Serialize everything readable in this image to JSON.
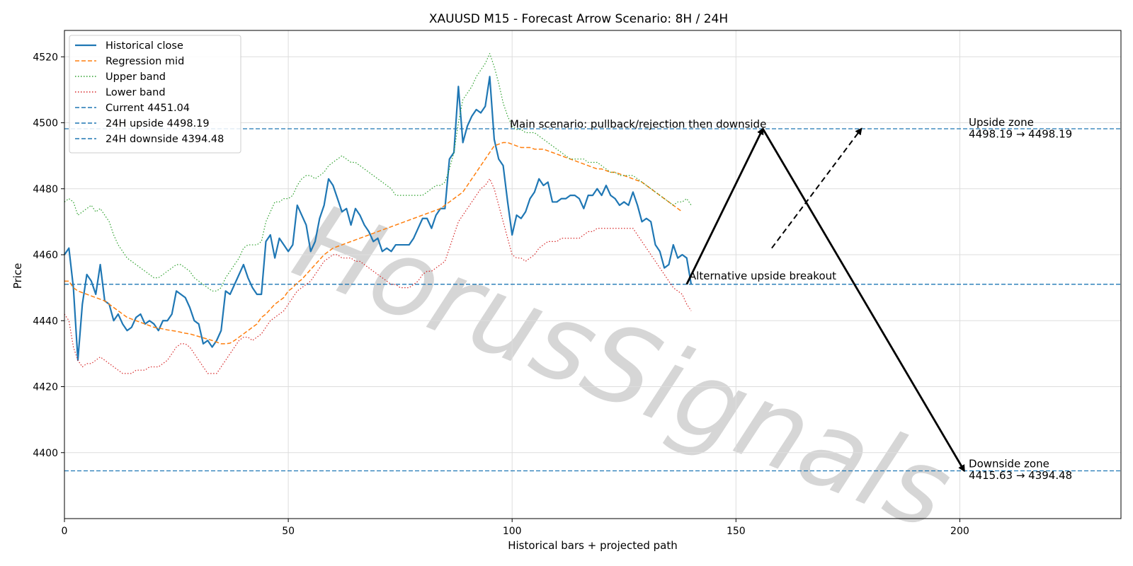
{
  "chart_data": {
    "type": "line",
    "title": "XAUUSD M15 - Forecast Arrow Scenario: 8H / 24H",
    "xlabel": "Historical bars + projected path",
    "ylabel": "Price",
    "xlim": [
      0,
      236
    ],
    "ylim": [
      4380,
      4528
    ],
    "xticks": [
      0,
      50,
      100,
      150,
      200
    ],
    "yticks": [
      4400,
      4420,
      4440,
      4460,
      4480,
      4500,
      4520
    ],
    "grid": true,
    "legend_position": "top-left",
    "colors": {
      "close": "#1f77b4",
      "mid": "#ff7f0e",
      "upper": "#2ca02c",
      "lower": "#d62728",
      "level": "#1f77b4",
      "arrow": "#000000"
    },
    "series": [
      {
        "name": "Historical close",
        "style": "solid",
        "values": [
          4460,
          4462,
          4450,
          4428,
          4445,
          4454,
          4452,
          4448,
          4457,
          4446,
          4445,
          4440,
          4442,
          4439,
          4437,
          4438,
          4441,
          4442,
          4439,
          4440,
          4439,
          4437,
          4440,
          4440,
          4442,
          4449,
          4448,
          4447,
          4444,
          4440,
          4439,
          4433,
          4434,
          4432,
          4434,
          4437,
          4449,
          4448,
          4451,
          4454,
          4457,
          4453,
          4450,
          4448,
          4448,
          4464,
          4466,
          4459,
          4465,
          4463,
          4461,
          4463,
          4475,
          4472,
          4469,
          4461,
          4464,
          4471,
          4475,
          4483,
          4481,
          4477,
          4473,
          4474,
          4469,
          4474,
          4472,
          4469,
          4467,
          4464,
          4465,
          4461,
          4462,
          4461,
          4463,
          4463,
          4463,
          4463,
          4465,
          4468,
          4471,
          4471,
          4468,
          4472,
          4474,
          4474,
          4489,
          4491,
          4511,
          4494,
          4499,
          4502,
          4504,
          4503,
          4505,
          4514,
          4495,
          4489,
          4487,
          4476,
          4466,
          4472,
          4471,
          4473,
          4477,
          4479,
          4483,
          4481,
          4482,
          4476,
          4476,
          4477,
          4477,
          4478,
          4478,
          4477,
          4474,
          4478,
          4478,
          4480,
          4478,
          4481,
          4478,
          4477,
          4475,
          4476,
          4475,
          4479,
          4475,
          4470,
          4471,
          4470,
          4463,
          4461,
          4456,
          4457,
          4463,
          4459,
          4460,
          4459,
          4451
        ]
      },
      {
        "name": "Regression mid",
        "style": "dashed",
        "values": [
          4452,
          4452,
          4450,
          4449,
          4448.5,
          4448,
          4447.5,
          4447,
          4446.5,
          4446,
          4445,
          4444,
          4443,
          4442,
          4441,
          4440.5,
          4440,
          4439.5,
          4439,
          4438.5,
          4438,
          4437.8,
          4437.5,
          4437.2,
          4437,
          4436.8,
          4436.5,
          4436.2,
          4436,
          4435.6,
          4435.2,
          4434.8,
          4434.4,
          4434,
          4433.5,
          4433,
          4433,
          4433.2,
          4434,
          4435,
          4436,
          4437,
          4438,
          4439,
          4441,
          4442,
          4443.5,
          4445,
          4446,
          4447,
          4449,
          4450,
          4451.5,
          4452.5,
          4454,
          4455.5,
          4457,
          4458.5,
          4460,
          4461,
          4462,
          4462.5,
          4463,
          4463.5,
          4464,
          4464.5,
          4465,
          4465.5,
          4466,
          4466.5,
          4467,
          4467.5,
          4468,
          4468.5,
          4469,
          4469.5,
          4470,
          4470.5,
          4471,
          4471.5,
          4472,
          4472.5,
          4473,
          4473.5,
          4474,
          4475,
          4476,
          4477,
          4478,
          4479,
          4481,
          4483,
          4485,
          4487,
          4489,
          4491,
          4493,
          4493.5,
          4494,
          4494,
          4493.5,
          4493,
          4492.5,
          4492.5,
          4492.5,
          4492,
          4492,
          4492,
          4491.5,
          4491,
          4490.5,
          4490,
          4489.5,
          4489,
          4488.5,
          4488,
          4487.5,
          4487,
          4486.5,
          4486,
          4486,
          4485.5,
          4485,
          4485,
          4484.5,
          4484,
          4483.5,
          4483,
          4482.5,
          4482,
          4481,
          4480,
          4479,
          4478,
          4477,
          4476,
          4475,
          4474,
          4473
        ]
      },
      {
        "name": "Upper band",
        "style": "dotted",
        "values": [
          4476,
          4477,
          4476,
          4472,
          4473,
          4474,
          4475,
          4473,
          4474,
          4472,
          4470,
          4466,
          4463,
          4461,
          4459,
          4458,
          4457,
          4456,
          4455,
          4454,
          4453,
          4453,
          4454,
          4455,
          4456,
          4457,
          4457,
          4456,
          4455,
          4453,
          4452,
          4451,
          4450,
          4449,
          4449,
          4450,
          4453,
          4455,
          4457,
          4459,
          4462,
          4463,
          4463,
          4463,
          4464,
          4470,
          4473,
          4476,
          4476,
          4477,
          4477,
          4478,
          4481,
          4483,
          4484,
          4484,
          4483,
          4484,
          4485,
          4487,
          4488,
          4489,
          4490,
          4489,
          4488,
          4488,
          4487,
          4486,
          4485,
          4484,
          4483,
          4482,
          4481,
          4480,
          4478,
          4478,
          4478,
          4478,
          4478,
          4478,
          4478,
          4479,
          4480,
          4481,
          4481,
          4482,
          4486,
          4491,
          4500,
          4507,
          4509,
          4511,
          4514,
          4516,
          4518,
          4521,
          4517,
          4512,
          4506,
          4502,
          4499,
          4498,
          4498,
          4497,
          4497,
          4497,
          4496,
          4495,
          4494,
          4493,
          4492,
          4491,
          4490,
          4489,
          4489,
          4489,
          4489,
          4488,
          4488,
          4488,
          4487,
          4486,
          4485,
          4485,
          4484,
          4484,
          4484,
          4484,
          4483,
          4482,
          4481,
          4480,
          4479,
          4478,
          4477,
          4476,
          4475,
          4476,
          4476,
          4477,
          4475
        ]
      },
      {
        "name": "Lower band",
        "style": "dotted",
        "values": [
          4442,
          4440,
          4432,
          4428,
          4426,
          4427,
          4427,
          4428,
          4429,
          4428,
          4427,
          4426,
          4425,
          4424,
          4424,
          4424,
          4425,
          4425,
          4425,
          4426,
          4426,
          4426,
          4427,
          4428,
          4430,
          4432,
          4433,
          4433,
          4432,
          4430,
          4428,
          4426,
          4424,
          4424,
          4424,
          4426,
          4428,
          4430,
          4432,
          4434,
          4435,
          4435,
          4434,
          4435,
          4436,
          4438,
          4440,
          4441,
          4442,
          4443,
          4445,
          4447,
          4449,
          4450,
          4451,
          4452,
          4454,
          4456,
          4458,
          4459,
          4460,
          4460,
          4459,
          4459,
          4459,
          4458,
          4458,
          4457,
          4456,
          4455,
          4454,
          4453,
          4452,
          4451,
          4451,
          4450,
          4450,
          4450,
          4451,
          4452,
          4454,
          4455,
          4455,
          4456,
          4457,
          4458,
          4462,
          4466,
          4470,
          4472,
          4474,
          4476,
          4478,
          4480,
          4481,
          4483,
          4480,
          4475,
          4470,
          4465,
          4460,
          4459,
          4459,
          4458,
          4459,
          4460,
          4462,
          4463,
          4464,
          4464,
          4464,
          4465,
          4465,
          4465,
          4465,
          4465,
          4466,
          4467,
          4467,
          4468,
          4468,
          4468,
          4468,
          4468,
          4468,
          4468,
          4468,
          4468,
          4466,
          4464,
          4462,
          4460,
          4458,
          4456,
          4454,
          4452,
          4450,
          4449,
          4448,
          4445,
          4443
        ]
      }
    ],
    "levels": [
      {
        "name": "Current 4451.04",
        "y": 4451.04
      },
      {
        "name": "24H upside 4498.19",
        "y": 4498.19
      },
      {
        "name": "24H downside 4394.48",
        "y": 4394.48
      }
    ],
    "arrows": [
      {
        "name": "main-upleg",
        "from": [
          139,
          4451.04
        ],
        "to": [
          156,
          4498.19
        ],
        "style": "solid"
      },
      {
        "name": "main-downleg",
        "from": [
          156,
          4498.19
        ],
        "to": [
          201,
          4394.48
        ],
        "style": "solid"
      },
      {
        "name": "alternative-breakout",
        "from": [
          158,
          4462
        ],
        "to": [
          178,
          4498.19
        ],
        "style": "dashed"
      }
    ],
    "annotations": [
      {
        "id": "main",
        "text": "Main scenario: pullback/rejection then downside",
        "x": 99.5,
        "y": 4498.5
      },
      {
        "id": "alt",
        "text": "Alternative upside breakout",
        "x": 139.5,
        "y": 4452.5
      },
      {
        "id": "up-zone-title",
        "text": "Upside zone",
        "x": 202,
        "y": 4499
      },
      {
        "id": "up-zone-range",
        "text": "4498.19 → 4498.19",
        "x": 202,
        "y": 4495.5
      },
      {
        "id": "down-zone-title",
        "text": "Downside zone",
        "x": 202,
        "y": 4395.5
      },
      {
        "id": "down-zone-range",
        "text": "4415.63 → 4394.48",
        "x": 202,
        "y": 4392
      }
    ],
    "watermark": "HorusSignals"
  }
}
